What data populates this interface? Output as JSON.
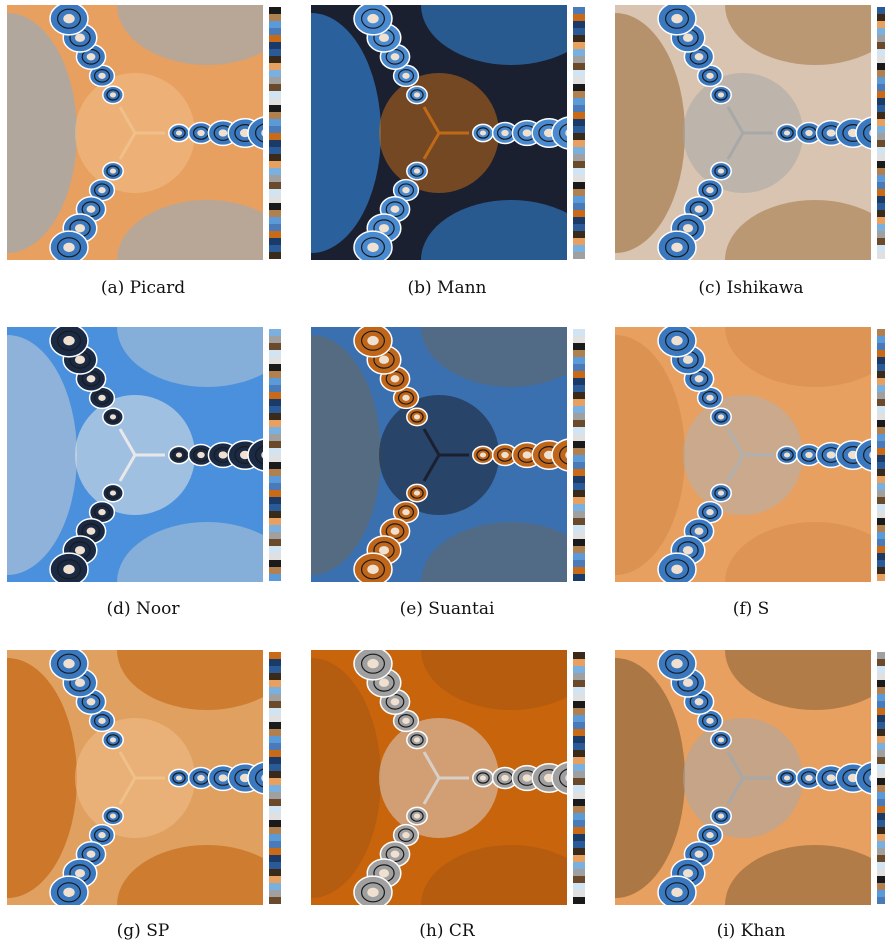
{
  "figure": {
    "panels": [
      {
        "label": "(a)",
        "name": "Picard",
        "bg": "#e8a060",
        "accent1": "#a8a8a8",
        "accent2": "#f0c08a",
        "basin": "#3a78c0"
      },
      {
        "label": "(b)",
        "name": "Mann",
        "bg": "#1a2030",
        "accent1": "#2e6db0",
        "accent2": "#c06a18",
        "basin": "#4a8ad0"
      },
      {
        "label": "(c)",
        "name": "Ishikawa",
        "bg": "#d8c4b0",
        "accent1": "#b08a60",
        "accent2": "#a8a8a8",
        "basin": "#3a78c0"
      },
      {
        "label": "(d)",
        "name": "Noor",
        "bg": "#4a90dc",
        "accent1": "#9ab8d8",
        "accent2": "#e8e8e8",
        "basin": "#1a2a44"
      },
      {
        "label": "(e)",
        "name": "Suantai",
        "bg": "#3a70b0",
        "accent1": "#5a6a7a",
        "accent2": "#1a2030",
        "basin": "#c0661a"
      },
      {
        "label": "(f)",
        "name": "S",
        "bg": "#e8a060",
        "accent1": "#d99050",
        "accent2": "#b0b0b0",
        "basin": "#3a78c0"
      },
      {
        "label": "(g)",
        "name": "SP",
        "bg": "#e0a060",
        "accent1": "#c87020",
        "accent2": "#f0c08a",
        "basin": "#3a78c0"
      },
      {
        "label": "(h)",
        "name": "CR",
        "bg": "#c8640c",
        "accent1": "#b05a10",
        "accent2": "#d8d0c8",
        "basin": "#a0a0a0"
      },
      {
        "label": "(i)",
        "name": "Khan",
        "bg": "#e8a060",
        "accent1": "#a07040",
        "accent2": "#a8a8a8",
        "basin": "#3a78c0"
      }
    ],
    "colorbar_colors": [
      "#1a1a1a",
      "#4a7ab8",
      "#2a5a98",
      "#7ab0e0",
      "#d0e4f4",
      "#b08050",
      "#c86a18",
      "#3a2a1a",
      "#a0a0a0",
      "#e0e0e0",
      "#5a9ad8",
      "#1a3a68",
      "#e8a060",
      "#6a4a2a"
    ]
  }
}
